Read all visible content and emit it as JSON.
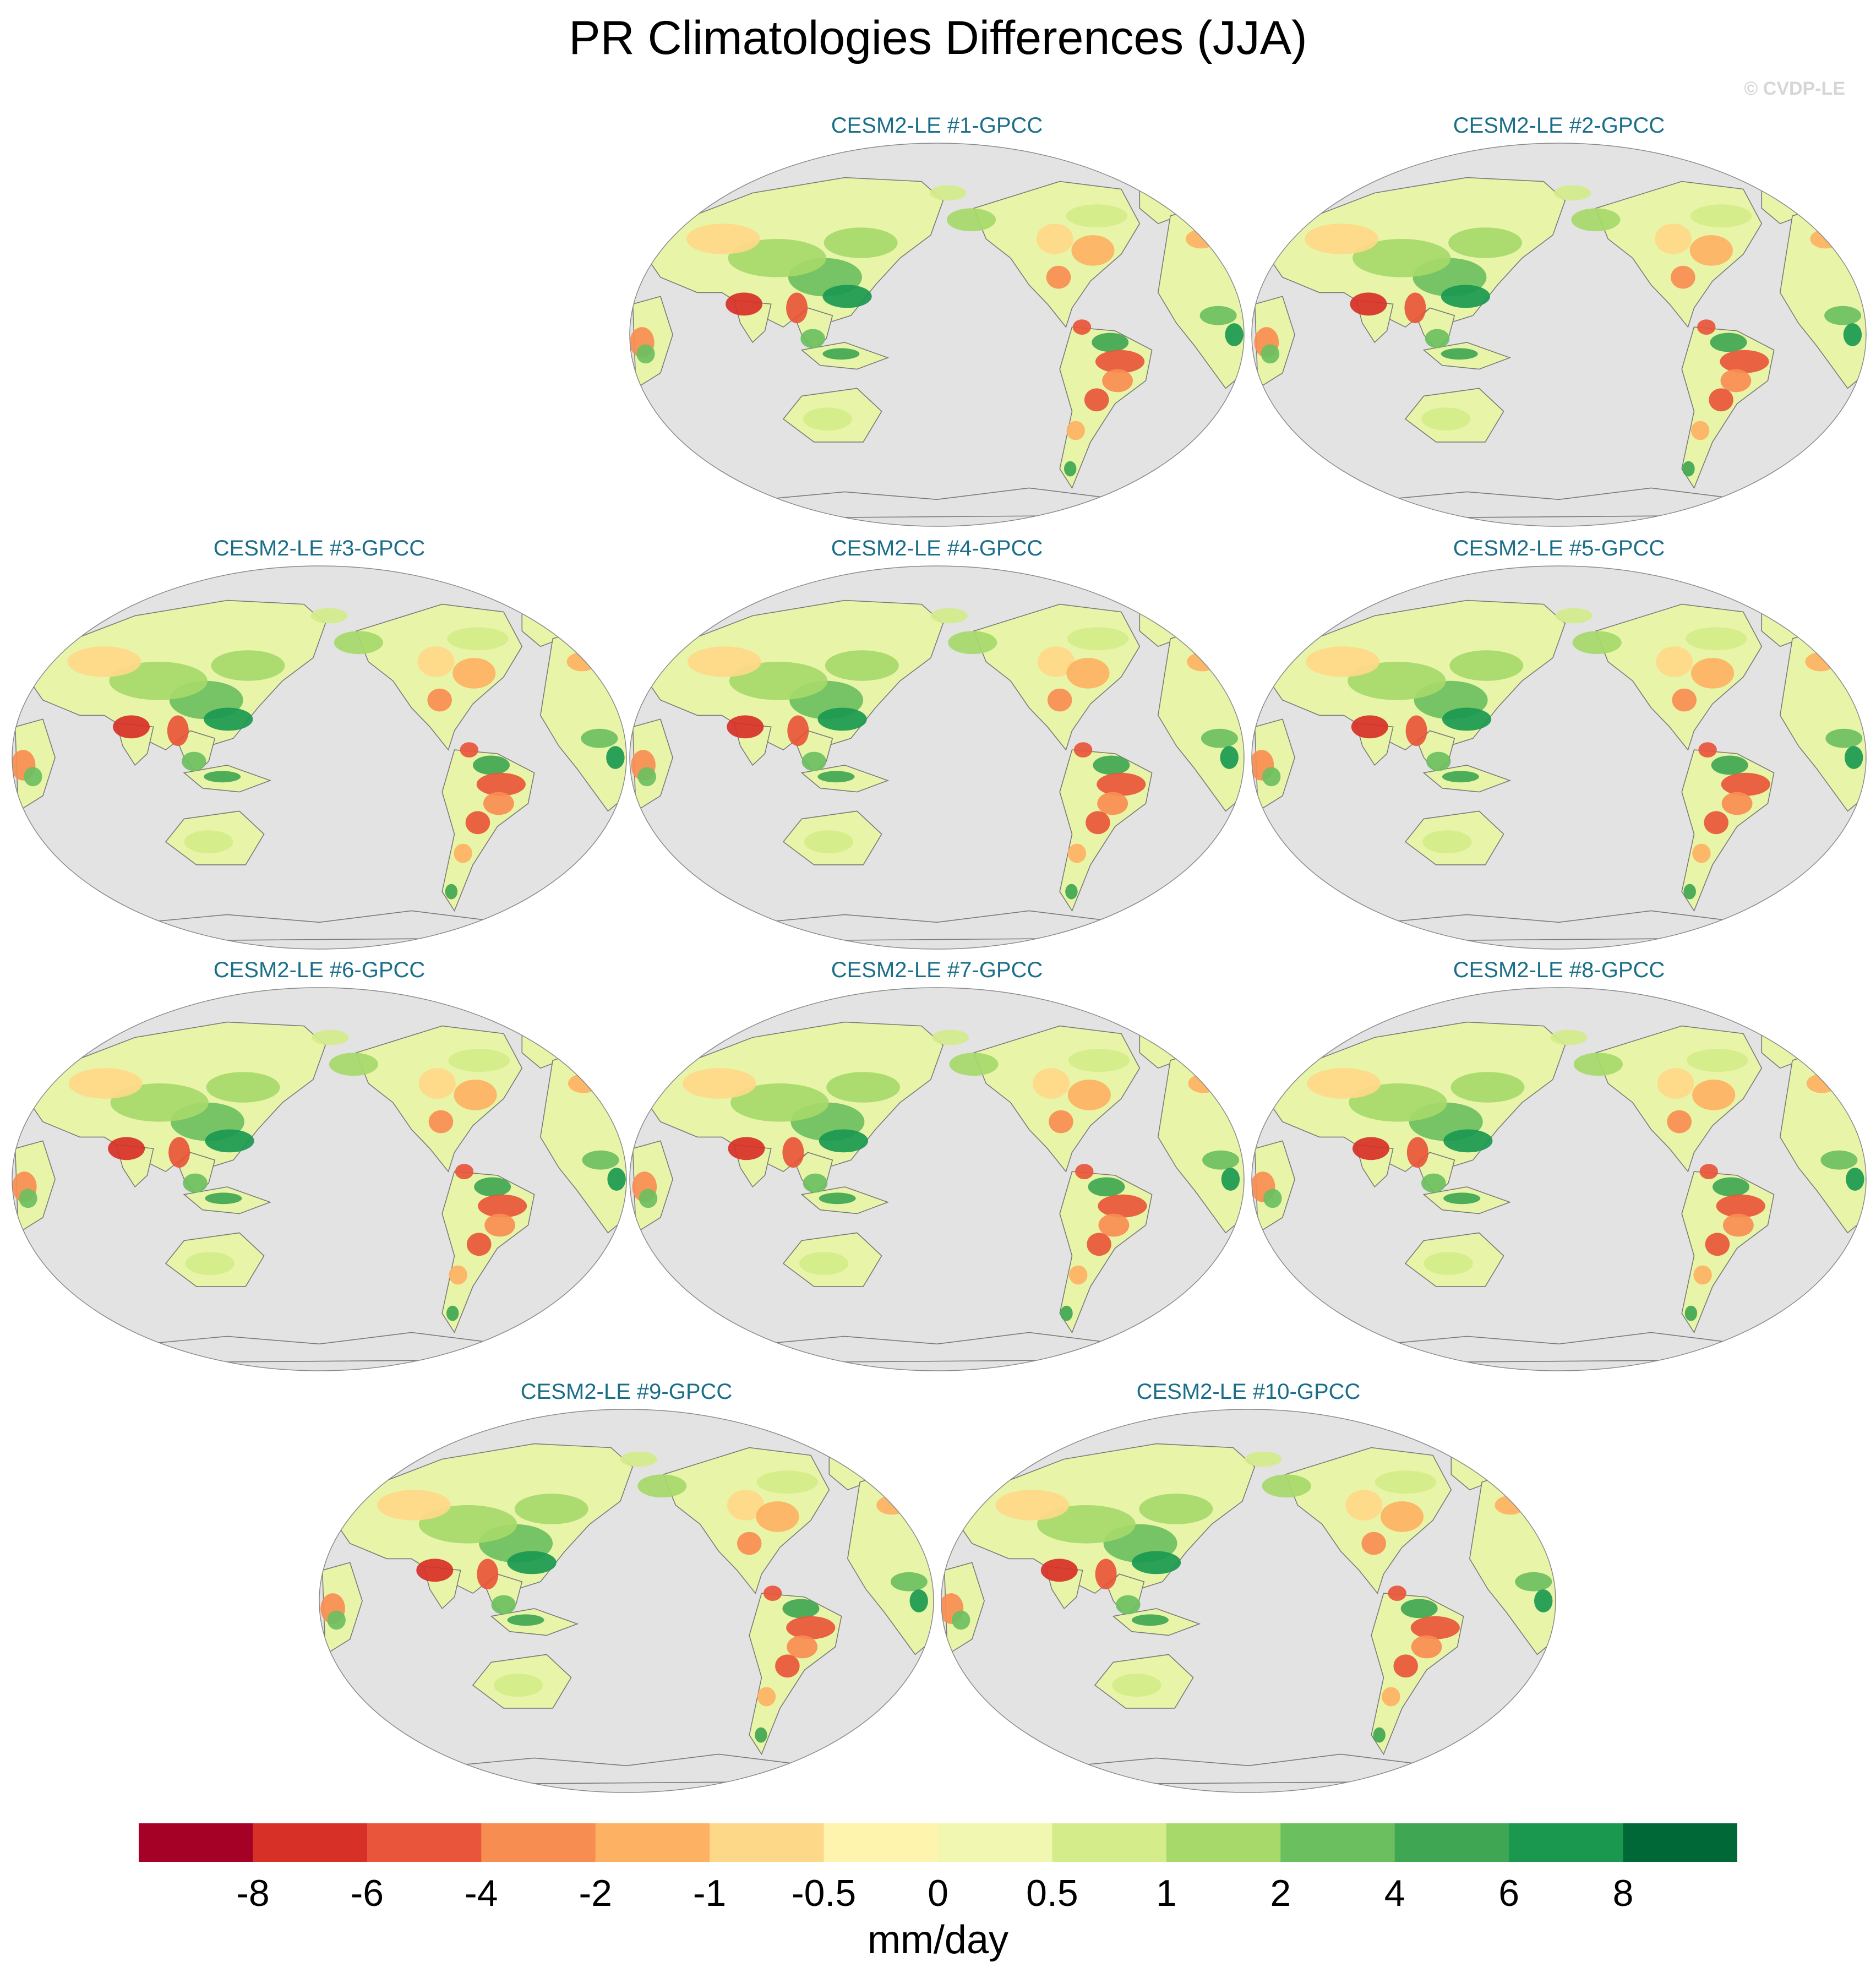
{
  "title": "PR Climatologies Differences (JJA)",
  "watermark": "© CVDP-LE",
  "panels": [
    {
      "title": "CESM2-LE #1-GPCC"
    },
    {
      "title": "CESM2-LE #2-GPCC"
    },
    {
      "title": "CESM2-LE #3-GPCC"
    },
    {
      "title": "CESM2-LE #4-GPCC"
    },
    {
      "title": "CESM2-LE #5-GPCC"
    },
    {
      "title": "CESM2-LE #6-GPCC"
    },
    {
      "title": "CESM2-LE #7-GPCC"
    },
    {
      "title": "CESM2-LE #8-GPCC"
    },
    {
      "title": "CESM2-LE #9-GPCC"
    },
    {
      "title": "CESM2-LE #10-GPCC"
    }
  ],
  "colorbar": {
    "units": "mm/day",
    "labels": [
      "-8",
      "-6",
      "-4",
      "-2",
      "-1",
      "-0.5",
      "0",
      "0.5",
      "1",
      "2",
      "4",
      "6",
      "8"
    ],
    "colors": [
      "#a50026",
      "#d73027",
      "#e8553a",
      "#f88d52",
      "#fdb163",
      "#fed889",
      "#fff4ad",
      "#f1f7b0",
      "#d4ec8a",
      "#a6d96a",
      "#6bbf5f",
      "#3fa653",
      "#1a9850",
      "#006837"
    ]
  },
  "map": {
    "ocean_color": "#e3e3e3",
    "land_base_color": "#e8f5a8",
    "coastline_color": "#7a7a7a"
  }
}
